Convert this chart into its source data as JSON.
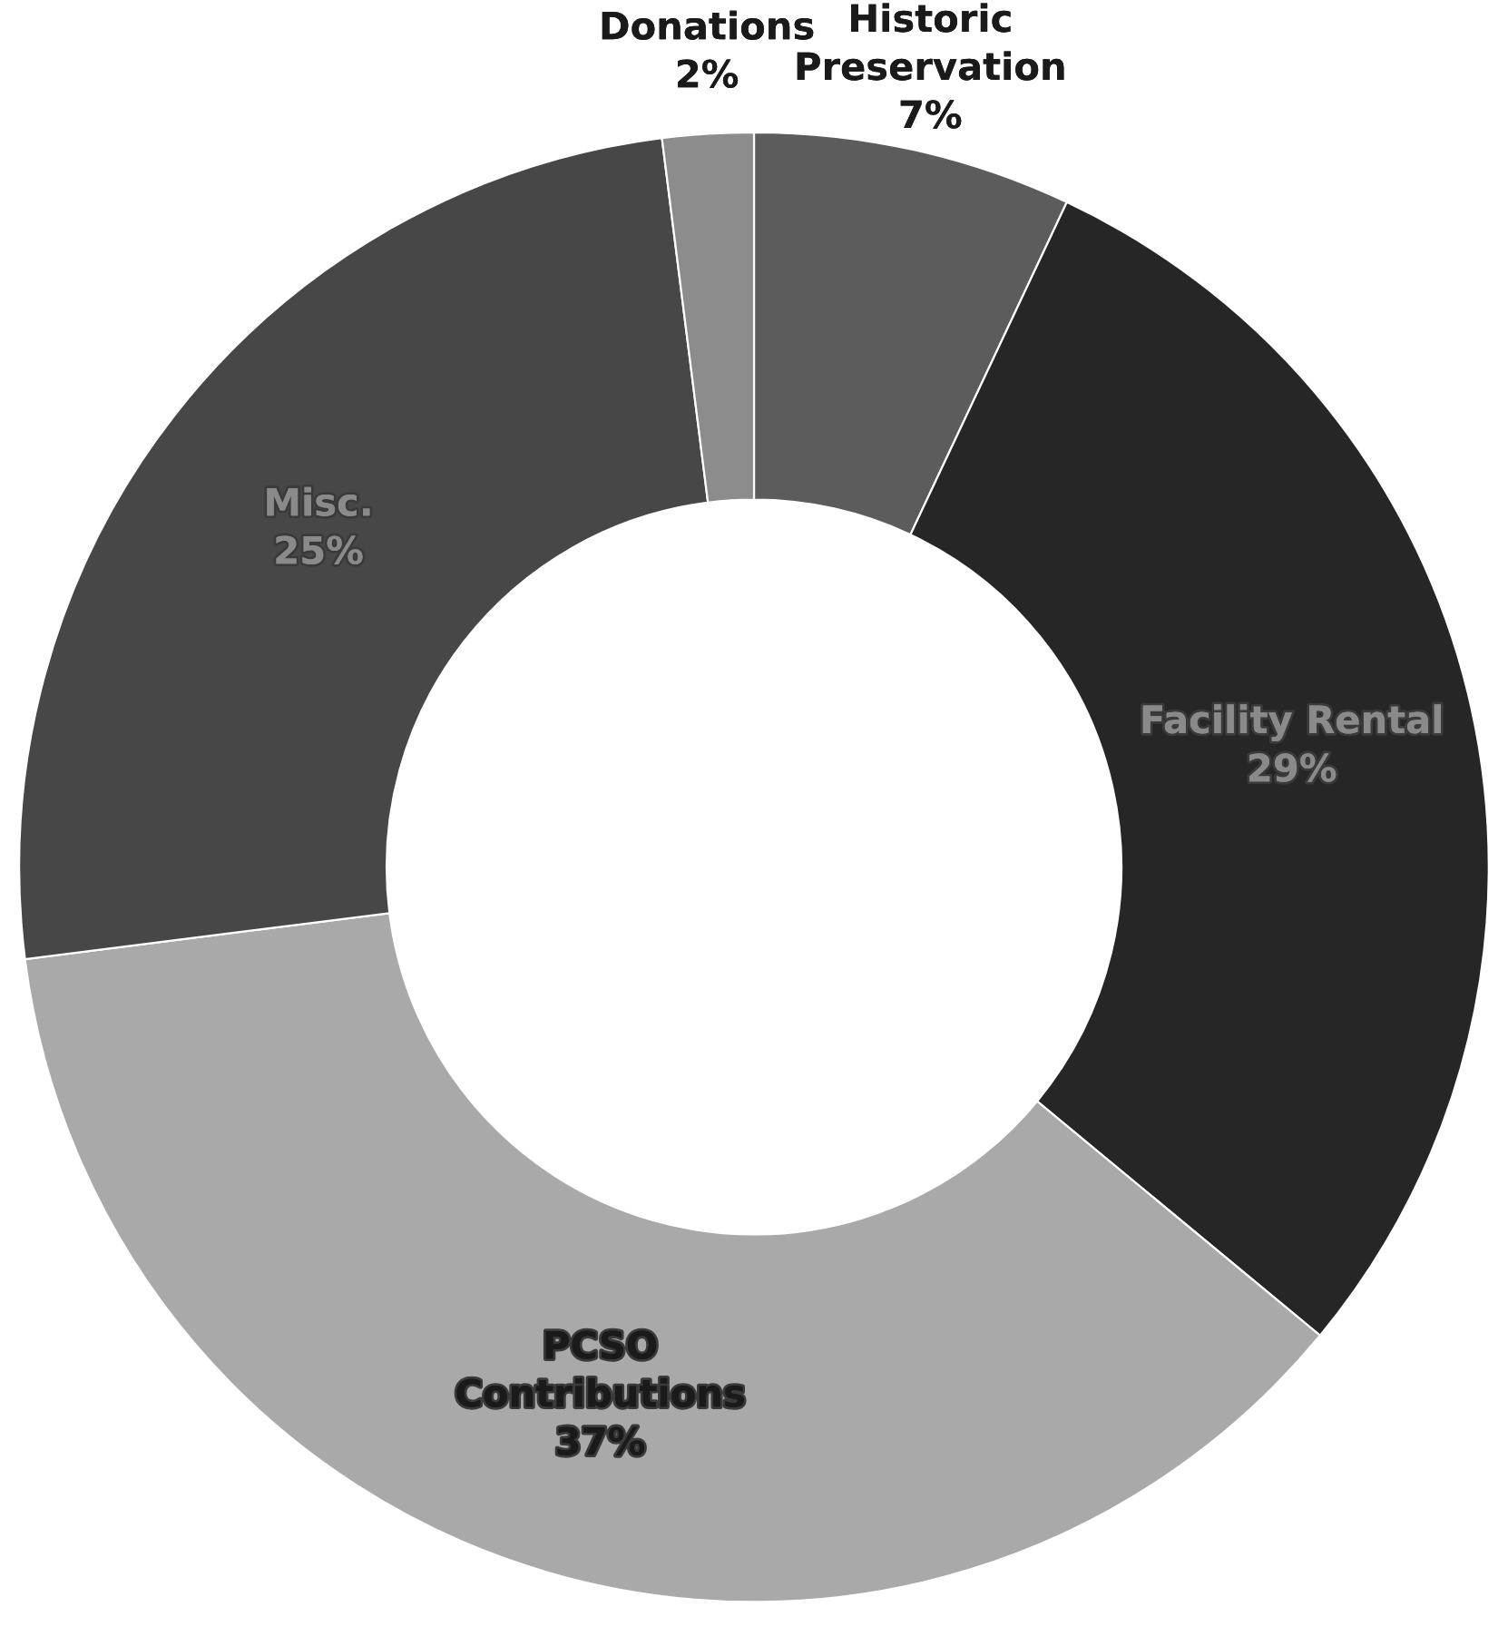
{
  "chart_data": {
    "type": "donut",
    "categories": [
      "Historic Preservation",
      "Facility Rental",
      "PCSO Contributions",
      "Misc.",
      "Donations"
    ],
    "values": [
      7,
      29,
      37,
      25,
      2
    ],
    "colors": [
      "#5c5c5c",
      "#262626",
      "#a9a9a9",
      "#474747",
      "#8c8c8c"
    ],
    "value_labels": [
      "7%",
      "29%",
      "37%",
      "25%",
      "2%"
    ],
    "legend": false
  }
}
